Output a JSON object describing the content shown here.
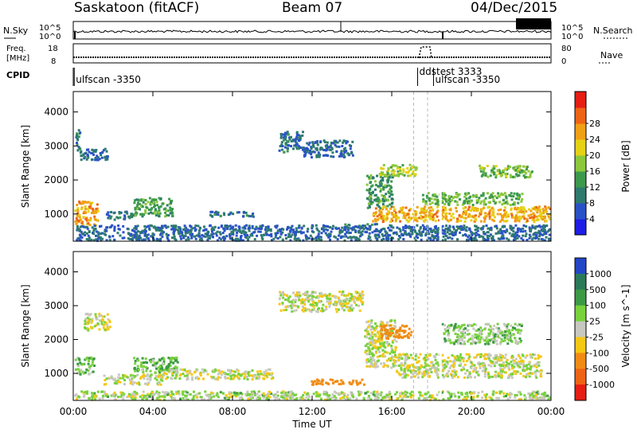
{
  "header": {
    "title": "Saskatoon (fitACF)",
    "beam": "Beam 07",
    "date": "04/Dec/2015"
  },
  "strip": {
    "nsky_label": "N.Sky",
    "nsearch_label": "N.Search",
    "nsky_ticks": [
      "10^5",
      "10^0"
    ],
    "freq_label_line1": "Freq.",
    "freq_label_line2": "[MHz]",
    "freq_ticks": [
      "18",
      "8"
    ],
    "nave_label": "Nave",
    "nave_ticks": [
      "80",
      "0"
    ],
    "cpid_label": "CPID",
    "cpid_entries": [
      {
        "time_h": 0.05,
        "label": "ulfscan -3350"
      },
      {
        "time_h": 17.3,
        "label": "ddstest 3333"
      },
      {
        "time_h": 18.1,
        "label": "ulfscan -3350"
      }
    ]
  },
  "chart_data": [
    {
      "type": "heatmap",
      "title": "",
      "xlabel": "Time UT",
      "ylabel": "Slant Range [km]",
      "xlim": [
        0,
        24
      ],
      "ylim": [
        200,
        4600
      ],
      "x_ticks": [
        "00:00",
        "04:00",
        "08:00",
        "12:00",
        "16:00",
        "20:00",
        "00:00"
      ],
      "y_ticks": [
        1000,
        2000,
        3000,
        4000
      ],
      "colorbar": {
        "label": "Power [dB]",
        "ticks": [
          4,
          8,
          12,
          16,
          20,
          24,
          28
        ],
        "colors": [
          "#1e1ee6",
          "#2a52c8",
          "#2e7a6e",
          "#3c9a4c",
          "#8cc83c",
          "#e6d214",
          "#f0a014",
          "#ee6414",
          "#e61e14"
        ]
      },
      "regions": [
        {
          "t": [
            0.05,
            1.2
          ],
          "r": [
            700,
            1400
          ],
          "value": 26
        },
        {
          "t": [
            0.05,
            0.3
          ],
          "r": [
            2900,
            3500
          ],
          "value": 10
        },
        {
          "t": [
            0.3,
            1.7
          ],
          "r": [
            2600,
            2950
          ],
          "value": 8
        },
        {
          "t": [
            1.6,
            3.0
          ],
          "r": [
            850,
            1100
          ],
          "value": 10
        },
        {
          "t": [
            3.0,
            5.0
          ],
          "r": [
            950,
            1500
          ],
          "value": 14
        },
        {
          "t": [
            6.8,
            9.0
          ],
          "r": [
            950,
            1100
          ],
          "value": 9
        },
        {
          "t": [
            10.3,
            11.5
          ],
          "r": [
            2850,
            3450
          ],
          "value": 9
        },
        {
          "t": [
            11.5,
            14.0
          ],
          "r": [
            2700,
            3200
          ],
          "value": 8
        },
        {
          "t": [
            14.7,
            16.0
          ],
          "r": [
            1200,
            2200
          ],
          "value": 13
        },
        {
          "t": [
            15.3,
            17.2
          ],
          "r": [
            2150,
            2500
          ],
          "value": 18
        },
        {
          "t": [
            15.0,
            23.9
          ],
          "r": [
            800,
            1250
          ],
          "value": 25
        },
        {
          "t": [
            17.5,
            22.5
          ],
          "r": [
            1300,
            1650
          ],
          "value": 16
        },
        {
          "t": [
            20.3,
            23.0
          ],
          "r": [
            2100,
            2450
          ],
          "value": 17
        },
        {
          "t": [
            13.6,
            15.2
          ],
          "r": [
            680,
            740
          ],
          "value": 11
        },
        {
          "t": [
            0.05,
            23.9
          ],
          "r": [
            250,
            700
          ],
          "value": 8
        }
      ]
    },
    {
      "type": "heatmap",
      "title": "",
      "xlabel": "Time UT",
      "ylabel": "Slant Range [km]",
      "xlim": [
        0,
        24
      ],
      "ylim": [
        200,
        4600
      ],
      "x_ticks": [
        "00:00",
        "04:00",
        "08:00",
        "12:00",
        "16:00",
        "20:00",
        "00:00"
      ],
      "y_ticks": [
        1000,
        2000,
        3000,
        4000
      ],
      "colorbar": {
        "label": "Velocity [m s^-1]",
        "ticks": [
          1000,
          500,
          100,
          25,
          -25,
          -100,
          -500,
          -1000
        ],
        "colors": [
          "#2346c8",
          "#2a7a5a",
          "#3c9a46",
          "#78d23c",
          "#c8c8c0",
          "#f5c814",
          "#f08c14",
          "#ee6414",
          "#e61e14"
        ]
      },
      "regions": [
        {
          "t": [
            0.05,
            1.0
          ],
          "r": [
            1000,
            1500
          ],
          "value": 80
        },
        {
          "t": [
            0.5,
            1.8
          ],
          "r": [
            2300,
            2800
          ],
          "value": 0
        },
        {
          "t": [
            1.5,
            4.5
          ],
          "r": [
            700,
            1000
          ],
          "value": 0
        },
        {
          "t": [
            3.0,
            5.2
          ],
          "r": [
            1050,
            1500
          ],
          "value": 90
        },
        {
          "t": [
            4.5,
            10.0
          ],
          "r": [
            850,
            1150
          ],
          "value": 0
        },
        {
          "t": [
            10.3,
            14.5
          ],
          "r": [
            2850,
            3450
          ],
          "value": 0
        },
        {
          "t": [
            14.6,
            16.2
          ],
          "r": [
            1200,
            2600
          ],
          "value": 0
        },
        {
          "t": [
            15.4,
            17.0
          ],
          "r": [
            2050,
            2450
          ],
          "value": -300
        },
        {
          "t": [
            16.2,
            23.5
          ],
          "r": [
            900,
            1600
          ],
          "value": 0
        },
        {
          "t": [
            18.5,
            22.5
          ],
          "r": [
            1900,
            2500
          ],
          "value": 60
        },
        {
          "t": [
            11.8,
            14.8
          ],
          "r": [
            700,
            850
          ],
          "value": -300
        },
        {
          "t": [
            0.05,
            23.9
          ],
          "r": [
            250,
            500
          ],
          "value": 30
        }
      ]
    }
  ]
}
